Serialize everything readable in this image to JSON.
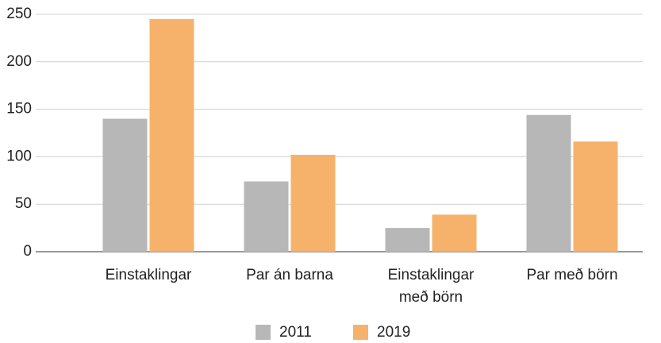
{
  "chart_data": {
    "type": "bar",
    "categories": [
      "Einstaklingar",
      "Par án barna",
      "Einstaklingar\nmeð börn",
      "Par með börn"
    ],
    "series": [
      {
        "name": "2011",
        "color": "#b7b7b7",
        "values": [
          140,
          74,
          25,
          144
        ]
      },
      {
        "name": "2019",
        "color": "#f6b26b",
        "values": [
          245,
          102,
          39,
          116
        ]
      }
    ],
    "ylim": [
      0,
      250
    ],
    "yticks": [
      0,
      50,
      100,
      150,
      200,
      250
    ],
    "grid": true,
    "legend": "bottom"
  }
}
